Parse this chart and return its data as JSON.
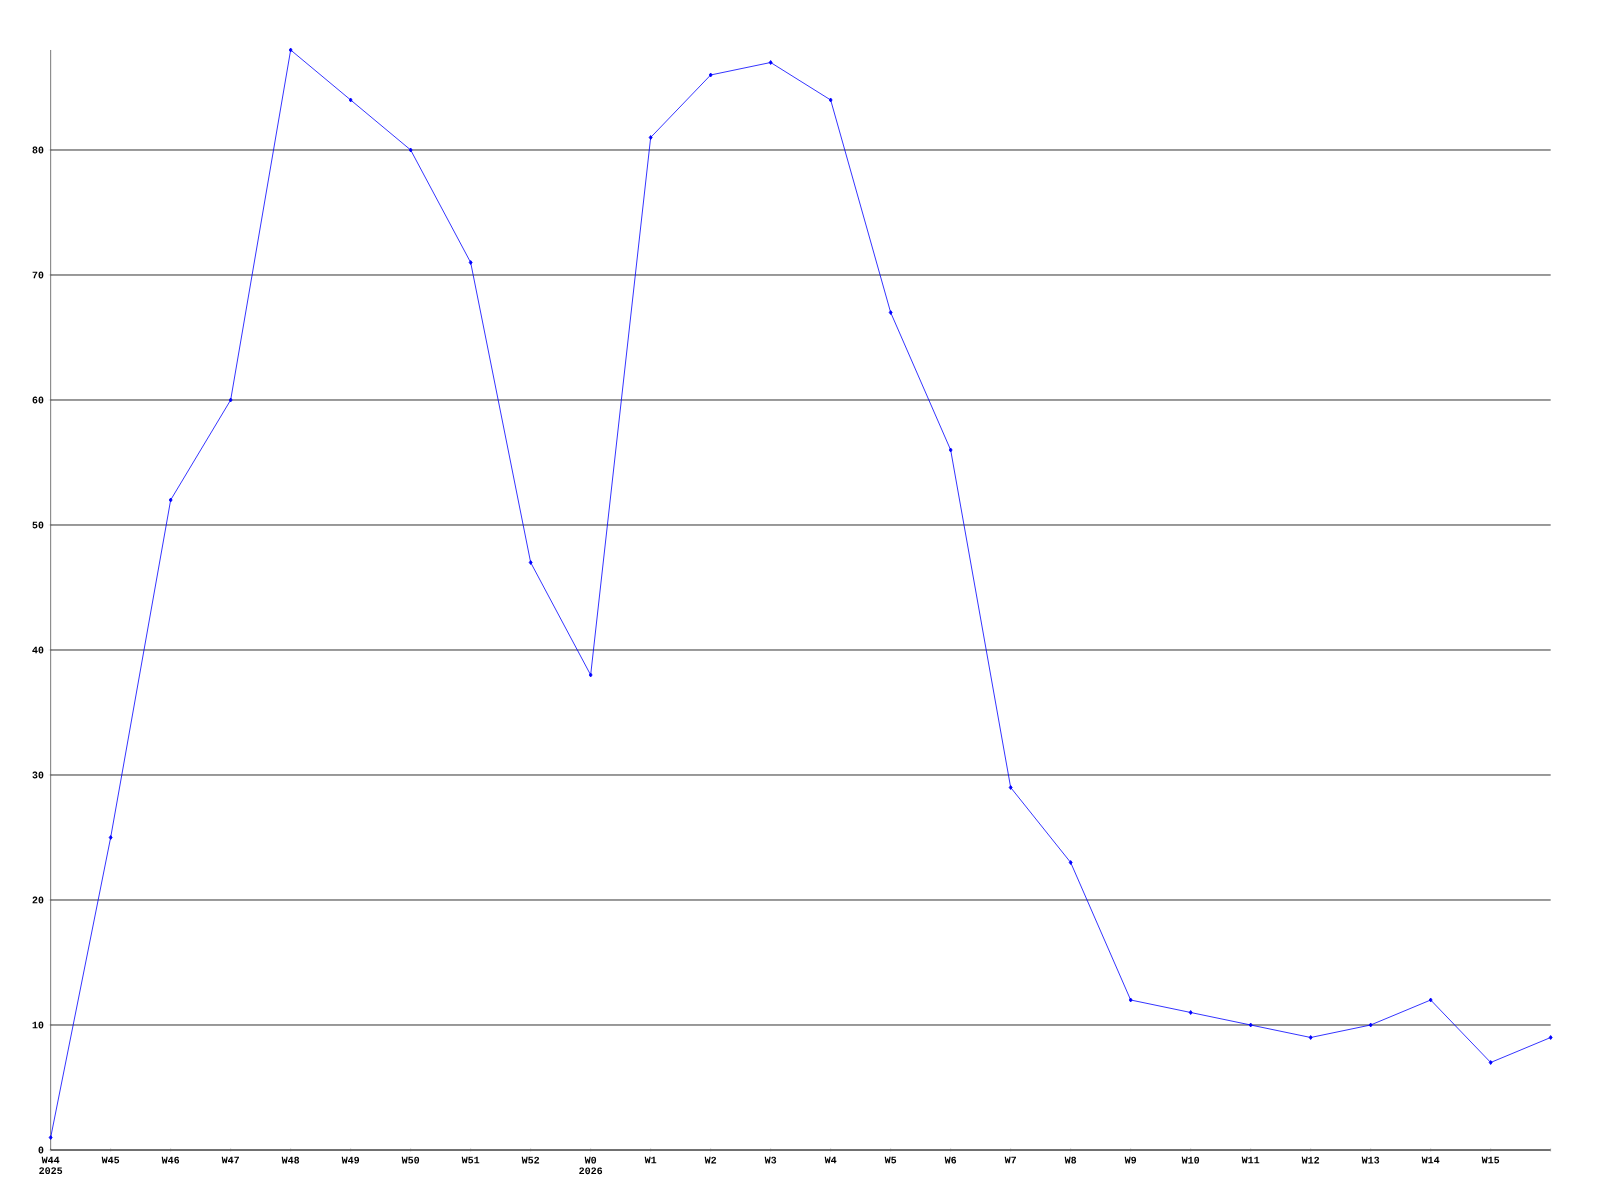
{
  "chart_data": {
    "type": "line",
    "categories": [
      "W44 2025",
      "W45",
      "W46",
      "W47",
      "W48",
      "W49",
      "W50",
      "W51",
      "W52",
      "W0 2026",
      "W1",
      "W2",
      "W3",
      "W4",
      "W5",
      "W6",
      "W7",
      "W8",
      "W9",
      "W10",
      "W11",
      "W12",
      "W13",
      "W14",
      "W15",
      null
    ],
    "values": [
      1,
      25,
      52,
      60,
      88,
      84,
      80,
      71,
      47,
      38,
      81,
      86,
      87,
      84,
      67,
      56,
      29,
      23,
      12,
      11,
      10,
      9,
      10,
      12,
      7,
      9
    ],
    "color": "#0000ff",
    "marker": "diamond",
    "grid": "y",
    "ylim": [
      0,
      88
    ],
    "yticks": [
      0,
      10,
      20,
      30,
      40,
      50,
      60,
      70,
      80
    ]
  }
}
